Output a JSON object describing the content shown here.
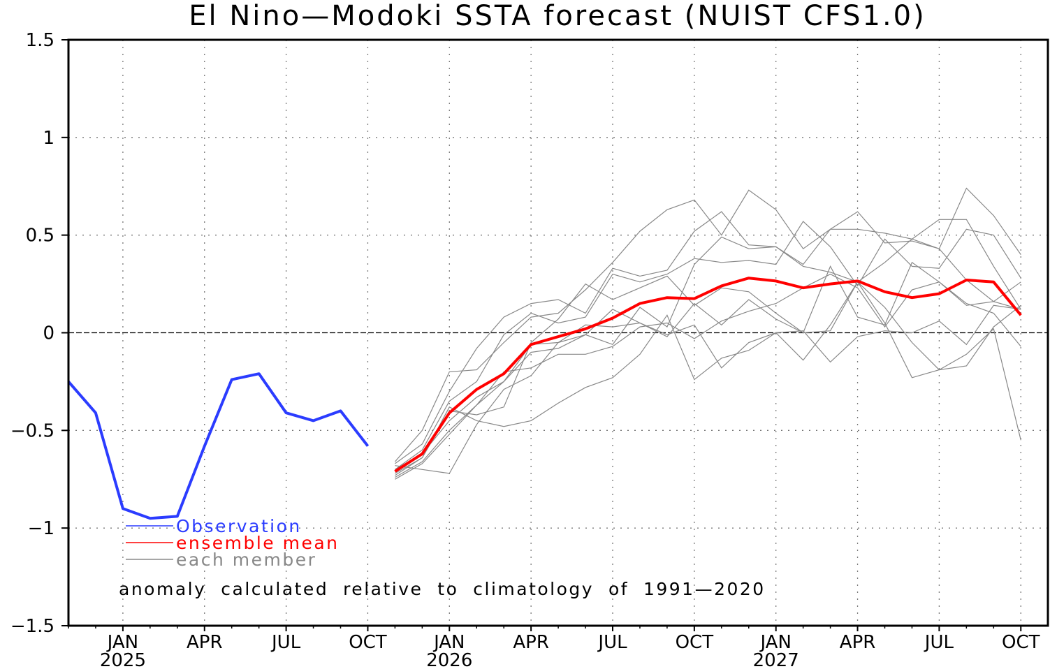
{
  "chart_data": {
    "type": "line",
    "title": "El Nino—Modoki SSTA forecast (NUIST CFS1.0)",
    "xlabel": "",
    "ylabel": "",
    "ylim": [
      -1.5,
      1.5
    ],
    "yticks": [
      1.5,
      1,
      0.5,
      0,
      -0.5,
      -1,
      -1.5
    ],
    "ytick_labels": [
      "1.5",
      "1",
      "0.5",
      "0",
      "−0.5",
      "−1",
      "−1.5"
    ],
    "x_start": "2024-11",
    "x_end": "2027-10",
    "xticks": [
      {
        "month_index": 2,
        "label": "JAN",
        "year": "2025"
      },
      {
        "month_index": 5,
        "label": "APR",
        "year": ""
      },
      {
        "month_index": 8,
        "label": "JUL",
        "year": ""
      },
      {
        "month_index": 11,
        "label": "OCT",
        "year": ""
      },
      {
        "month_index": 14,
        "label": "JAN",
        "year": "2026"
      },
      {
        "month_index": 17,
        "label": "APR",
        "year": ""
      },
      {
        "month_index": 20,
        "label": "JUL",
        "year": ""
      },
      {
        "month_index": 23,
        "label": "OCT",
        "year": ""
      },
      {
        "month_index": 26,
        "label": "JAN",
        "year": "2027"
      },
      {
        "month_index": 29,
        "label": "APR",
        "year": ""
      },
      {
        "month_index": 32,
        "label": "JUL",
        "year": ""
      },
      {
        "month_index": 35,
        "label": "OCT",
        "year": ""
      }
    ],
    "grid": true,
    "legend_placement": "bottom-left",
    "legend": [
      {
        "label": "Observation",
        "color": "#2b3cff"
      },
      {
        "label": "ensemble  mean",
        "color": "#ff0000"
      },
      {
        "label": "each  member",
        "color": "#888888"
      }
    ],
    "annotation": "anomaly  calculated  relative  to  climatology  of  1991—2020",
    "series": [
      {
        "name": "Observation",
        "color": "#2b3cff",
        "start_index": 0,
        "values": [
          -0.25,
          -0.41,
          -0.9,
          -0.95,
          -0.94,
          -0.58,
          -0.24,
          -0.21,
          -0.41,
          -0.45,
          -0.4,
          -0.58
        ]
      },
      {
        "name": "ensemble mean",
        "color": "#ff0000",
        "start_index": 12,
        "values": [
          -0.71,
          -0.62,
          -0.41,
          -0.29,
          -0.21,
          -0.06,
          -0.02,
          0.02,
          0.075,
          0.15,
          0.18,
          0.175,
          0.24,
          0.28,
          0.265,
          0.23,
          0.25,
          0.265,
          0.21,
          0.18,
          0.2,
          0.27,
          0.26,
          0.09
        ]
      }
    ],
    "members": {
      "color": "#888888",
      "start_index": 12,
      "series": [
        [
          -0.66,
          -0.5,
          -0.2,
          -0.19,
          -0.05,
          0.08,
          0.1,
          0.22,
          0.36,
          0.52,
          0.63,
          0.68,
          0.5,
          0.73,
          0.63,
          0.43,
          0.53,
          0.62,
          0.46,
          0.47,
          0.43,
          0.74,
          0.6,
          0.4
        ],
        [
          -0.67,
          -0.57,
          -0.3,
          -0.08,
          0.08,
          0.15,
          0.17,
          0.1,
          0.33,
          0.29,
          0.32,
          0.52,
          0.62,
          0.45,
          0.44,
          0.35,
          0.53,
          0.53,
          0.51,
          0.48,
          0.58,
          0.58,
          0.34,
          0.12
        ],
        [
          -0.7,
          -0.6,
          -0.35,
          -0.25,
          -0.01,
          0.1,
          0.05,
          0.08,
          0.3,
          0.26,
          0.3,
          0.38,
          0.36,
          0.37,
          0.35,
          0.57,
          0.44,
          0.24,
          0.48,
          0.34,
          0.33,
          0.53,
          0.5,
          0.28
        ],
        [
          -0.73,
          -0.64,
          -0.4,
          -0.42,
          -0.38,
          -0.05,
          0.07,
          0.25,
          0.17,
          0.23,
          0.29,
          0.14,
          0.23,
          0.21,
          0.1,
          0.0,
          0.34,
          0.08,
          0.04,
          0.36,
          0.26,
          0.14,
          0.16,
          0.26
        ],
        [
          -0.74,
          -0.66,
          -0.5,
          -0.37,
          -0.25,
          -0.1,
          -0.08,
          -0.01,
          -0.06,
          0.13,
          0.03,
          0.35,
          0.49,
          0.43,
          0.44,
          0.34,
          0.31,
          0.26,
          0.36,
          0.48,
          0.43,
          0.27,
          0.16,
          0.12
        ],
        [
          -0.75,
          -0.67,
          -0.52,
          -0.37,
          -0.2,
          -0.18,
          -0.11,
          -0.11,
          -0.07,
          0.03,
          0.05,
          -0.03,
          0.06,
          0.11,
          0.15,
          0.23,
          0.3,
          0.23,
          0.03,
          0.22,
          0.26,
          0.15,
          0.1,
          -0.07
        ],
        [
          -0.68,
          -0.7,
          -0.72,
          -0.47,
          -0.29,
          -0.22,
          -0.05,
          -0.01,
          0.12,
          0.05,
          -0.02,
          0.15,
          0.04,
          0.17,
          0.07,
          0.0,
          0.01,
          0.26,
          0.05,
          -0.23,
          -0.19,
          -0.11,
          0.02,
          -0.55
        ],
        [
          -0.72,
          -0.64,
          -0.38,
          -0.45,
          -0.48,
          -0.45,
          -0.36,
          -0.28,
          -0.23,
          -0.11,
          0.09,
          -0.24,
          -0.13,
          -0.09,
          0.0,
          -0.14,
          0.04,
          0.26,
          0.13,
          -0.05,
          -0.19,
          -0.17,
          0.03,
          0.14
        ],
        [
          -0.7,
          -0.62,
          -0.45,
          -0.33,
          -0.25,
          -0.06,
          -0.05,
          0.04,
          0.03,
          0.05,
          -0.01,
          0.04,
          -0.18,
          -0.05,
          0.0,
          0.01,
          -0.15,
          -0.02,
          0.01,
          0.0,
          0.06,
          -0.06,
          0.14,
          0.12
        ]
      ]
    }
  }
}
